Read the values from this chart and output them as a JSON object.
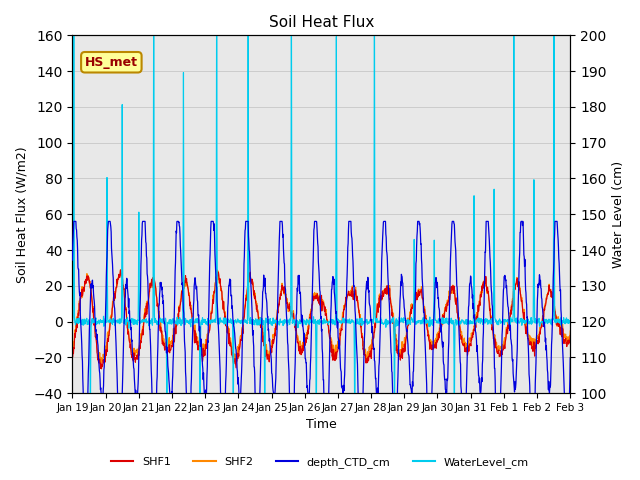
{
  "title": "Soil Heat Flux",
  "xlabel": "Time",
  "ylabel_left": "Soil Heat Flux (W/m2)",
  "ylabel_right": "Water Level (cm)",
  "ylim_left": [
    -40,
    160
  ],
  "ylim_right": [
    100,
    200
  ],
  "annotation_text": "HS_met",
  "annotation_bg": "#ffff99",
  "annotation_border": "#bb8800",
  "annotation_text_color": "#990000",
  "grid_color": "#cccccc",
  "bg_color": "#e8e8e8",
  "line_colors": {
    "SHF1": "#dd0000",
    "SHF2": "#ff8800",
    "depth_CTD_cm": "#0000dd",
    "WaterLevel_cm": "#00ccee"
  },
  "legend_labels": [
    "SHF1",
    "SHF2",
    "depth_CTD_cm",
    "WaterLevel_cm"
  ],
  "x_tick_labels": [
    "Jan 19",
    "Jan 20",
    "Jan 21",
    "Jan 22",
    "Jan 23",
    "Jan 24",
    "Jan 25",
    "Jan 26",
    "Jan 27",
    "Jan 28",
    "Jan 29",
    "Jan 30",
    "Jan 31",
    "Feb 1",
    "Feb 2",
    "Feb 3"
  ],
  "n_days": 15,
  "pts_per_day": 96
}
